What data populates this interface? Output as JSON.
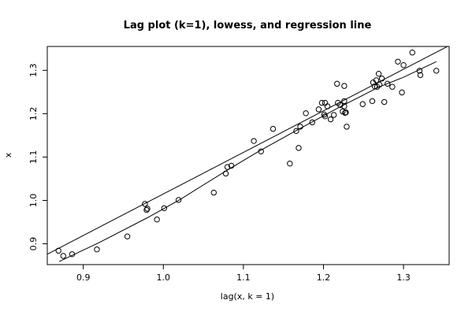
{
  "chart_data": {
    "type": "scatter",
    "title": "Lag plot (k=1), lowess, and regression line",
    "xlabel": "lag(x, k = 1)",
    "ylabel": "x",
    "xlim": [
      0.855,
      1.357
    ],
    "ylim": [
      0.852,
      1.355
    ],
    "x_ticks": [
      0.9,
      1.0,
      1.1,
      1.2,
      1.3
    ],
    "x_tick_labels": [
      "0.9",
      "1.0",
      "1.1",
      "1.2",
      "1.3"
    ],
    "y_ticks": [
      0.9,
      1.0,
      1.1,
      1.2,
      1.3
    ],
    "y_tick_labels": [
      "0.9",
      "1.0",
      "1.1",
      "1.2",
      "1.3"
    ],
    "grid": false,
    "points": [
      [
        0.869,
        0.884
      ],
      [
        0.875,
        0.872
      ],
      [
        0.886,
        0.876
      ],
      [
        0.917,
        0.887
      ],
      [
        0.955,
        0.917
      ],
      [
        0.977,
        0.992
      ],
      [
        0.979,
        0.978
      ],
      [
        0.98,
        0.981
      ],
      [
        0.992,
        0.956
      ],
      [
        1.001,
        0.982
      ],
      [
        1.019,
        1.001
      ],
      [
        1.063,
        1.018
      ],
      [
        1.078,
        1.062
      ],
      [
        1.08,
        1.077
      ],
      [
        1.085,
        1.08
      ],
      [
        1.113,
        1.137
      ],
      [
        1.122,
        1.113
      ],
      [
        1.137,
        1.165
      ],
      [
        1.158,
        1.085
      ],
      [
        1.166,
        1.16
      ],
      [
        1.169,
        1.121
      ],
      [
        1.171,
        1.17
      ],
      [
        1.178,
        1.201
      ],
      [
        1.186,
        1.18
      ],
      [
        1.194,
        1.21
      ],
      [
        1.198,
        1.225
      ],
      [
        1.201,
        1.198
      ],
      [
        1.202,
        1.225
      ],
      [
        1.202,
        1.194
      ],
      [
        1.205,
        1.217
      ],
      [
        1.209,
        1.187
      ],
      [
        1.213,
        1.197
      ],
      [
        1.217,
        1.269
      ],
      [
        1.218,
        1.225
      ],
      [
        1.221,
        1.22
      ],
      [
        1.224,
        1.205
      ],
      [
        1.226,
        1.229
      ],
      [
        1.226,
        1.217
      ],
      [
        1.226,
        1.264
      ],
      [
        1.227,
        1.202
      ],
      [
        1.228,
        1.203
      ],
      [
        1.229,
        1.17
      ],
      [
        1.249,
        1.222
      ],
      [
        1.261,
        1.229
      ],
      [
        1.262,
        1.272
      ],
      [
        1.264,
        1.263
      ],
      [
        1.266,
        1.277
      ],
      [
        1.267,
        1.262
      ],
      [
        1.269,
        1.292
      ],
      [
        1.27,
        1.267
      ],
      [
        1.273,
        1.281
      ],
      [
        1.276,
        1.227
      ],
      [
        1.28,
        1.269
      ],
      [
        1.286,
        1.262
      ],
      [
        1.293,
        1.32
      ],
      [
        1.298,
        1.249
      ],
      [
        1.3,
        1.312
      ],
      [
        1.311,
        1.341
      ],
      [
        1.32,
        1.299
      ],
      [
        1.321,
        1.289
      ],
      [
        1.341,
        1.299
      ]
    ],
    "regression_line": [
      [
        0.855,
        0.876
      ],
      [
        1.357,
        1.357
      ]
    ],
    "lowess_line": [
      [
        0.87,
        0.859
      ],
      [
        0.92,
        0.903
      ],
      [
        0.98,
        0.96
      ],
      [
        1.02,
        1.001
      ],
      [
        1.08,
        1.07
      ],
      [
        1.12,
        1.114
      ],
      [
        1.17,
        1.165
      ],
      [
        1.22,
        1.215
      ],
      [
        1.27,
        1.262
      ],
      [
        1.3,
        1.284
      ],
      [
        1.341,
        1.32
      ]
    ]
  }
}
